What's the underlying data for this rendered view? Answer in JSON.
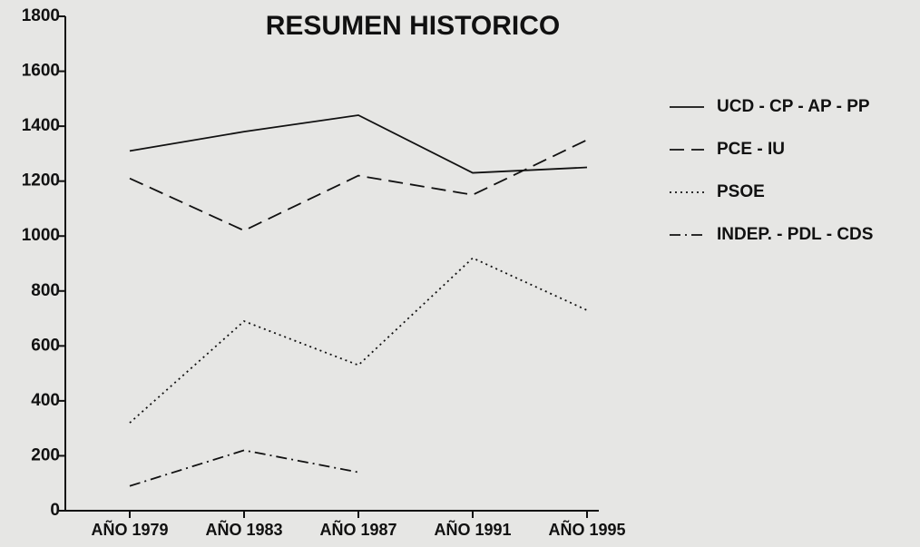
{
  "chart_data": {
    "type": "line",
    "title": "RESUMEN HISTORICO",
    "categories": [
      "AÑO 1979",
      "AÑO 1983",
      "AÑO 1987",
      "AÑO 1991",
      "AÑO 1995"
    ],
    "series": [
      {
        "name": "UCD - CP - AP - PP",
        "color": "#111111",
        "dash": "solid",
        "values": [
          1310,
          1380,
          1440,
          1230,
          1250
        ]
      },
      {
        "name": "PCE - IU",
        "color": "#111111",
        "dash": "dashed",
        "values": [
          1210,
          1020,
          1220,
          1150,
          1350
        ]
      },
      {
        "name": "PSOE",
        "color": "#111111",
        "dash": "dotted",
        "values": [
          320,
          690,
          530,
          920,
          730
        ]
      },
      {
        "name": "INDEP. - PDL - CDS",
        "color": "#111111",
        "dash": "dashdot",
        "values": [
          90,
          220,
          140,
          null,
          null
        ]
      }
    ],
    "ylim": [
      0,
      1800
    ],
    "yticks": [
      0,
      200,
      400,
      600,
      800,
      1000,
      1200,
      1400,
      1600,
      1800
    ],
    "grid": false,
    "legend": "right"
  }
}
